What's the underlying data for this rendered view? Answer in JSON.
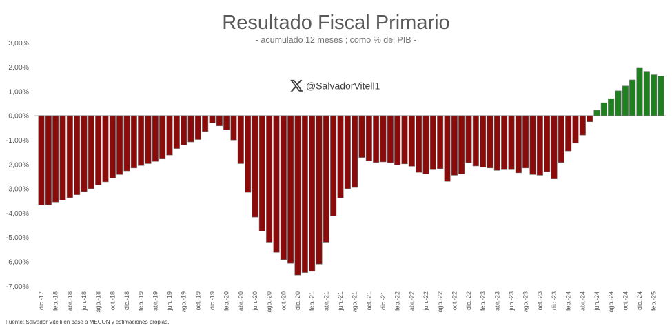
{
  "chart_data": {
    "type": "bar",
    "title": "Resultado Fiscal Primario",
    "subtitle": "- acumulado 12 meses ; como % del PIB -",
    "ylim": [
      -7,
      3
    ],
    "grid": false,
    "y_tick_labels": [
      "3,00%",
      "2,00%",
      "1,00%",
      "0,00%",
      "-1,00%",
      "-2,00%",
      "-3,00%",
      "-4,00%",
      "-5,00%",
      "-6,00%",
      "-7,00%"
    ],
    "x_tick_labels": [
      "dic.-17",
      "feb.-18",
      "abr.-18",
      "jun.-18",
      "ago.-18",
      "oct.-18",
      "dic.-18",
      "feb.-19",
      "abr.-19",
      "jun.-19",
      "ago.-19",
      "oct.-19",
      "dic.-19",
      "feb.-20",
      "abr.-20",
      "jun.-20",
      "ago.-20",
      "oct.-20",
      "dic.-20",
      "feb.-21",
      "abr.-21",
      "jun.-21",
      "ago.-21",
      "oct.-21",
      "dic.-21",
      "feb.-22",
      "abr.-22",
      "jun.-22",
      "ago.-22",
      "oct.-22",
      "dic.-22",
      "feb.-23",
      "abr.-23",
      "jun.-23",
      "ago.-23",
      "oct.-23",
      "dic.-23",
      "feb.-24",
      "abr.-24",
      "jun.-24",
      "ago.-24",
      "oct.-24",
      "dic.-24",
      "feb.-25"
    ],
    "values": [
      -3.67,
      -3.66,
      -3.55,
      -3.47,
      -3.37,
      -3.25,
      -3.12,
      -3.0,
      -2.85,
      -2.72,
      -2.57,
      -2.42,
      -2.27,
      -2.15,
      -2.05,
      -1.97,
      -1.88,
      -1.78,
      -1.62,
      -1.35,
      -1.2,
      -1.08,
      -0.98,
      -0.65,
      -0.3,
      -0.42,
      -0.58,
      -1.0,
      -1.97,
      -3.15,
      -4.17,
      -4.75,
      -5.2,
      -5.62,
      -5.92,
      -6.07,
      -6.55,
      -6.45,
      -6.4,
      -6.1,
      -5.2,
      -4.12,
      -3.38,
      -3.0,
      -2.95,
      -1.72,
      -1.85,
      -1.92,
      -1.9,
      -1.93,
      -2.02,
      -1.98,
      -2.08,
      -2.33,
      -2.4,
      -2.22,
      -2.18,
      -2.7,
      -2.45,
      -2.4,
      -1.93,
      -2.07,
      -2.12,
      -2.15,
      -2.25,
      -2.22,
      -2.22,
      -2.35,
      -2.15,
      -2.42,
      -2.45,
      -2.3,
      -2.6,
      -1.92,
      -1.45,
      -1.13,
      -0.8,
      -0.25,
      0.22,
      0.53,
      0.7,
      1.02,
      1.22,
      1.47,
      1.98,
      1.82,
      1.68,
      1.63
    ],
    "colors": {
      "negative_bars": "#8b0a0a",
      "positive_bars": "#1f801f"
    }
  },
  "watermark": {
    "icon": "x-logo-icon",
    "handle": "@SalvadorVitell1"
  },
  "source": "Fuente: Salvador Vitelli en base a MECON y estimaciones propias."
}
